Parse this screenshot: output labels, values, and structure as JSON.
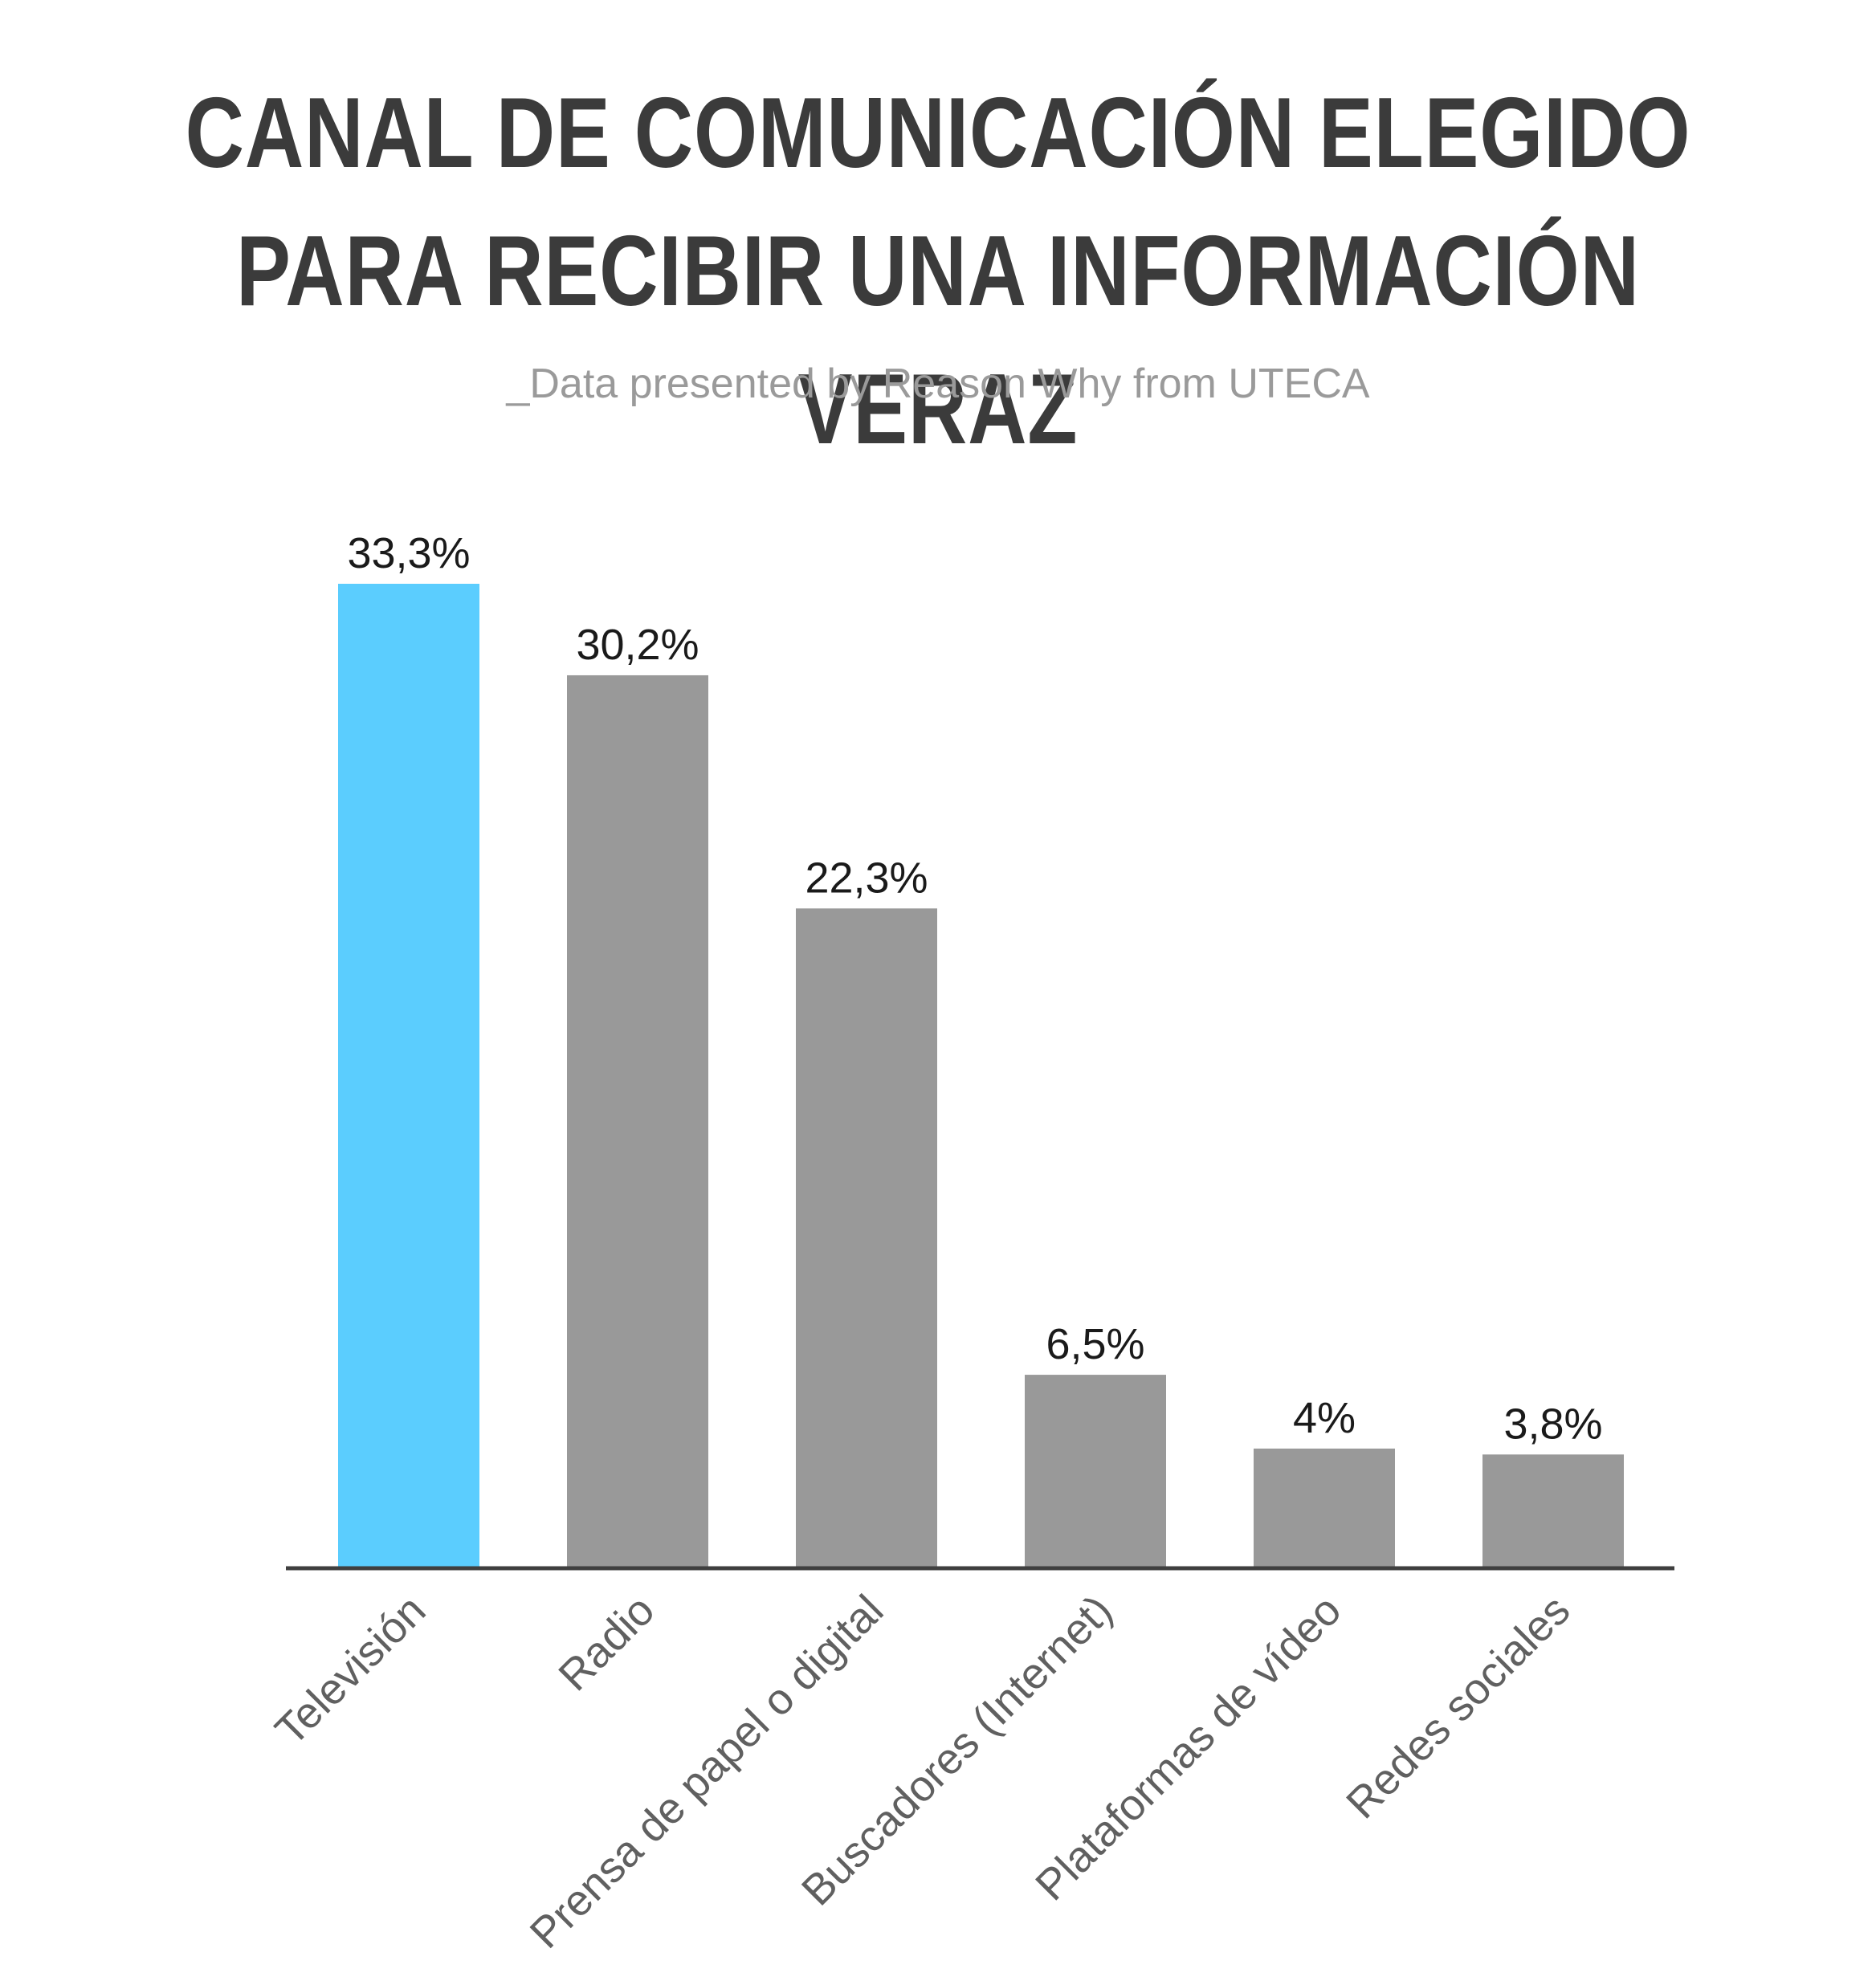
{
  "header": {
    "title_line1": "CANAL DE COMUNICACIÓN ELEGIDO",
    "title_line2": "PARA RECIBIR UNA INFORMACIÓN VERAZ",
    "subtitle": "_Data presented by Reason Why from UTECA"
  },
  "colors": {
    "highlight": "#5bcdfe",
    "bar": "#999999",
    "axis": "#3f3f3f",
    "title": "#3b3b3b",
    "subtitle": "#9a9a9a",
    "tick_label": "#606060",
    "value_label": "#1a1a1a"
  },
  "chart_data": {
    "type": "bar",
    "categories": [
      "Televisión",
      "Radio",
      "Prensa de papel o digital",
      "Buscadores (Internet)",
      "Plataformas de vídeo",
      "Redes sociales"
    ],
    "values": [
      33.3,
      30.2,
      22.3,
      6.5,
      4,
      3.8
    ],
    "value_labels": [
      "33,3%",
      "30,2%",
      "22,3%",
      "6,5%",
      "4%",
      "3,8%"
    ],
    "highlight_index": 0,
    "title": "CANAL DE COMUNICACIÓN ELEGIDO PARA RECIBIR UNA INFORMACIÓN VERAZ",
    "subtitle": "_Data presented by Reason Why from UTECA",
    "xlabel": "",
    "ylabel": "",
    "ylim": [
      0,
      33.3
    ],
    "grid": false,
    "legend": "none"
  }
}
